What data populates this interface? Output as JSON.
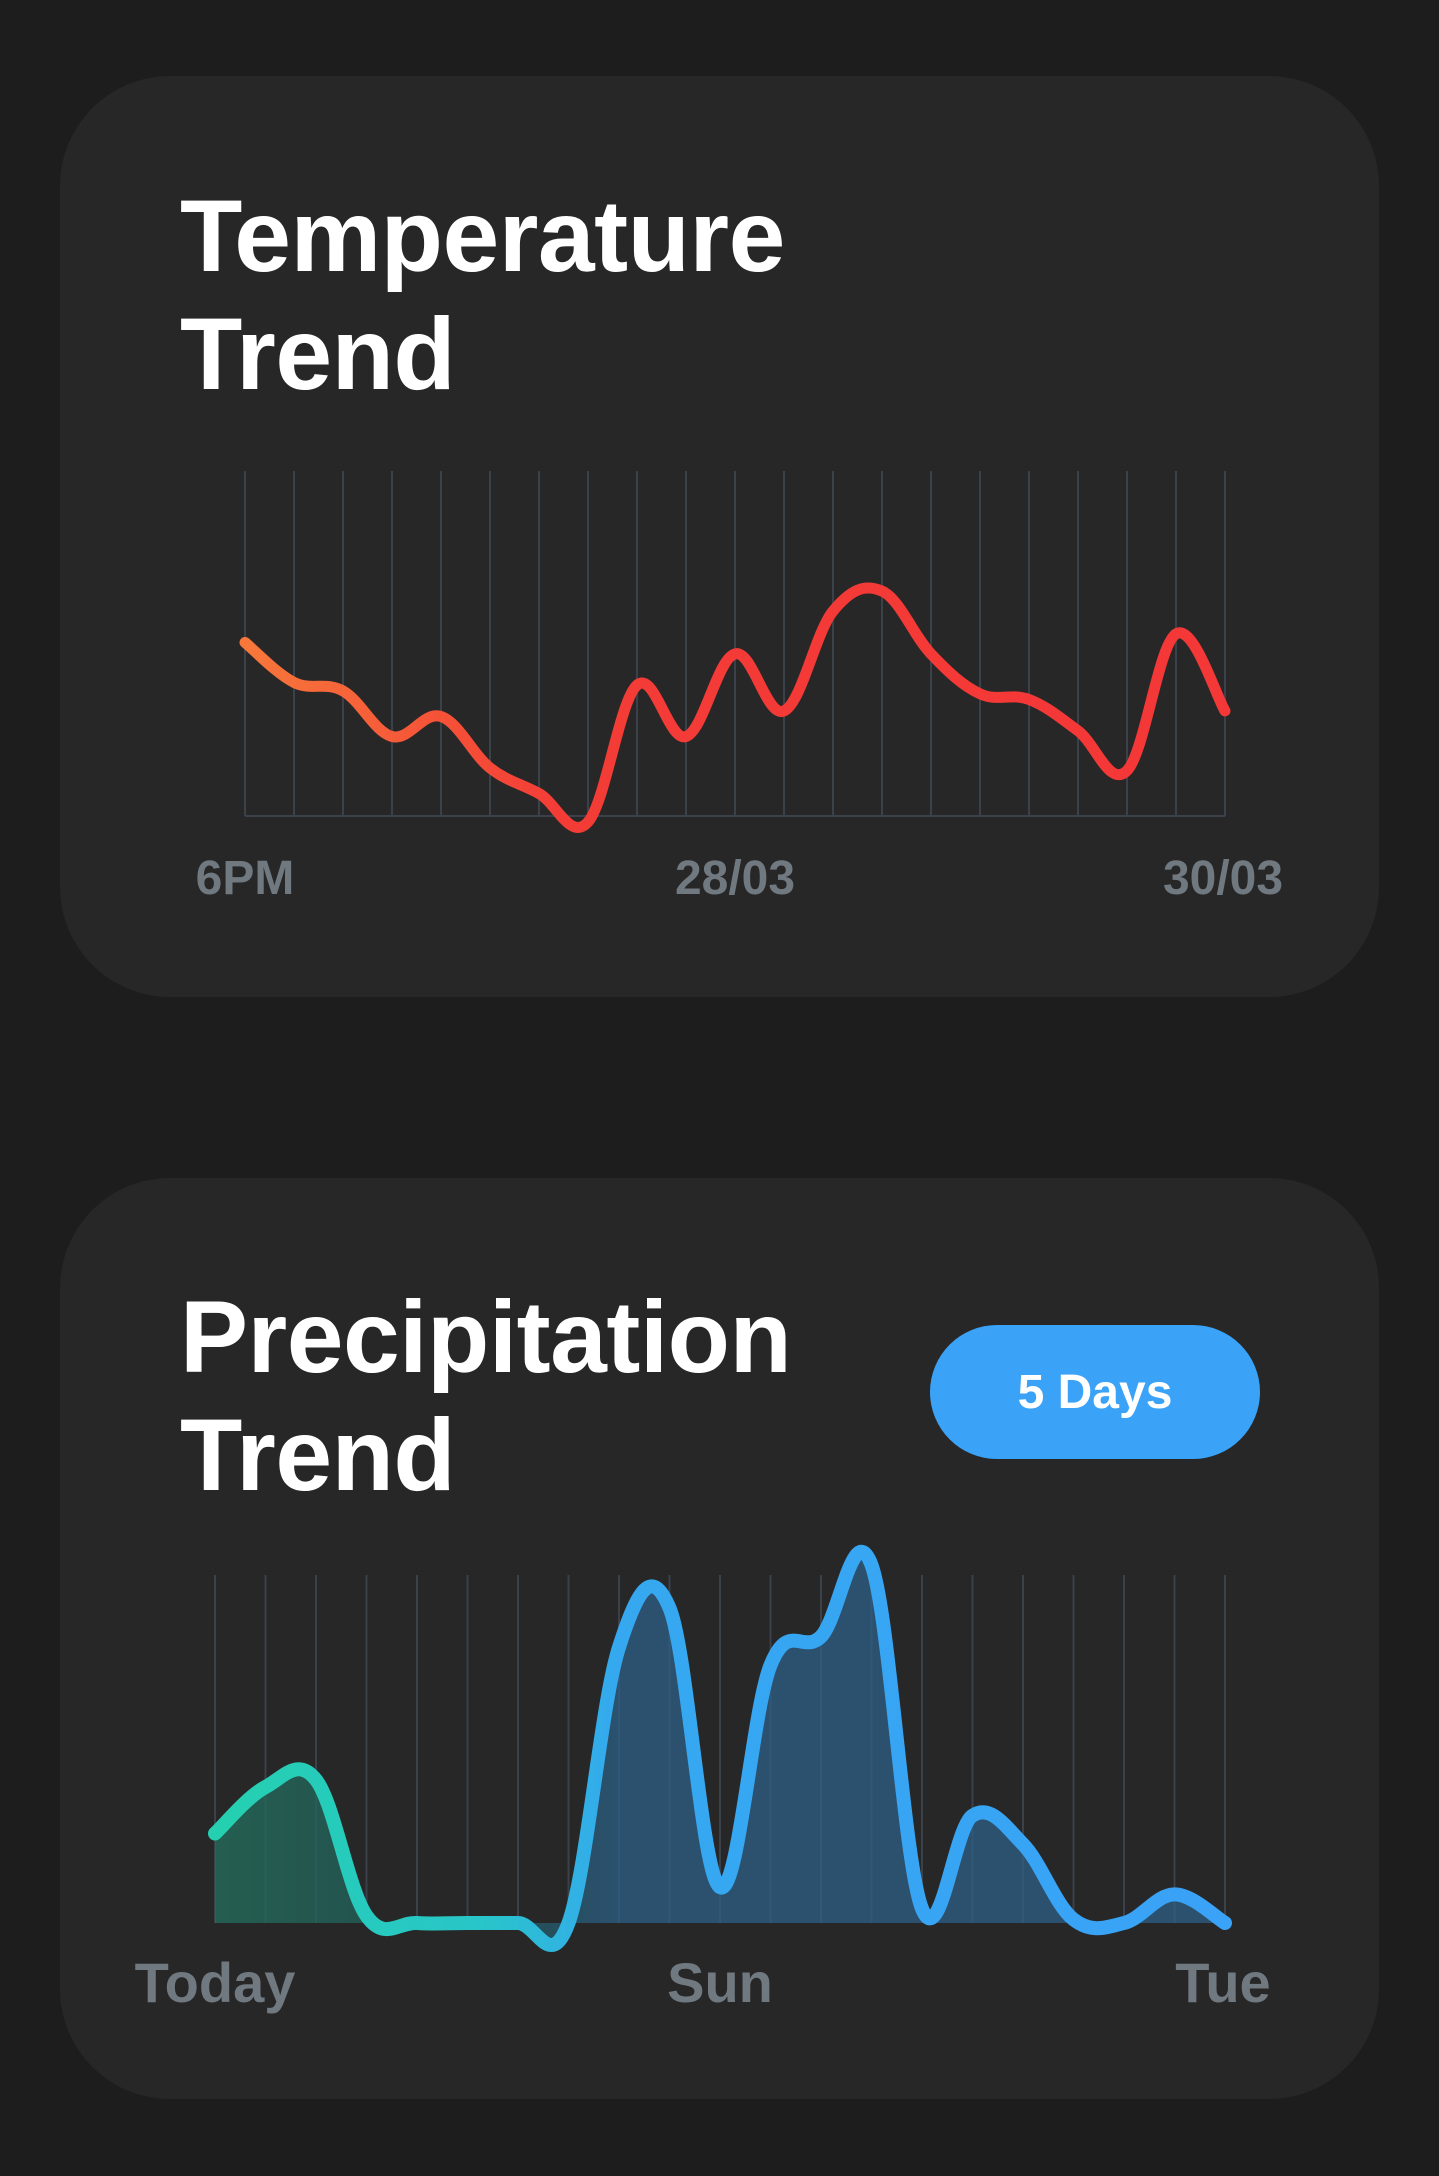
{
  "temperature_card": {
    "title_line1": "Temperature",
    "title_line2": "Trend"
  },
  "precipitation_card": {
    "title_line1": "Precipitation",
    "title_line2": "Trend",
    "range_button_label": "5 Days"
  },
  "colors": {
    "background": "#1d1d1d",
    "card": "#272727",
    "grid": "#3a414a",
    "axis_label": "#707880",
    "temp_start": "#f7773a",
    "temp_end": "#f43737",
    "precip_teal": "#25d0b0",
    "precip_blue": "#3aa2f7",
    "pill": "#3aa2f7"
  },
  "chart_data": [
    {
      "type": "line",
      "xlabel": "",
      "ylabel": "",
      "x_tick_labels": [
        "6PM",
        "28/03",
        "30/03"
      ],
      "grid": "vertical",
      "points": 21,
      "values": [
        0.63,
        0.49,
        0.46,
        0.3,
        0.37,
        0.19,
        0.1,
        0.0,
        0.48,
        0.3,
        0.59,
        0.39,
        0.74,
        0.81,
        0.59,
        0.45,
        0.43,
        0.32,
        0.18,
        0.66,
        0.39
      ]
    },
    {
      "type": "area",
      "xlabel": "",
      "ylabel": "",
      "x_tick_labels": [
        "Today",
        "Sun",
        "Tue"
      ],
      "grid": "vertical",
      "points": 21,
      "values": [
        0.25,
        0.38,
        0.4,
        0.02,
        0.0,
        0.0,
        0.0,
        0.0,
        0.77,
        0.88,
        0.1,
        0.72,
        0.8,
        1.0,
        0.04,
        0.3,
        0.22,
        0.01,
        0.0,
        0.08,
        0.0
      ]
    }
  ]
}
